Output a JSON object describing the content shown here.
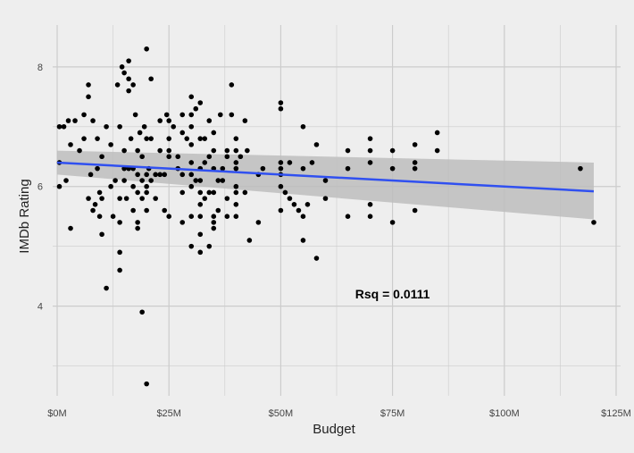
{
  "chart_data": {
    "type": "scatter",
    "xlabel": "Budget",
    "ylabel": "IMDb Rating",
    "xlim": [
      -1,
      126
    ],
    "ylim": [
      2.5,
      8.7
    ],
    "x_ticks": [
      0,
      25,
      50,
      75,
      100,
      125
    ],
    "x_tick_labels": [
      "$0M",
      "$25M",
      "$50M",
      "$75M",
      "$100M",
      "$125M"
    ],
    "y_ticks": [
      4,
      6,
      8
    ],
    "y_tick_labels": [
      "4",
      "6",
      "8"
    ],
    "grid": true,
    "annotation": {
      "text": "Rsq = 0.0111",
      "x": 75,
      "y": 4.2
    },
    "colors": {
      "points": "#000000",
      "trend": "#3050f0",
      "band": "#bdbdbd",
      "grid": "#cccccc",
      "background": "#eeeeee"
    },
    "trend": {
      "x": [
        0,
        120
      ],
      "y": [
        6.4,
        5.92
      ],
      "band_upper": [
        6.6,
        6.4
      ],
      "band_lower": [
        6.2,
        5.45
      ]
    },
    "series": [
      {
        "points": [
          [
            0.5,
            7.0
          ],
          [
            1.5,
            7.0
          ],
          [
            0.5,
            6.4
          ],
          [
            0.5,
            6.0
          ],
          [
            2,
            6.1
          ],
          [
            2.5,
            7.1
          ],
          [
            3,
            6.7
          ],
          [
            3,
            5.3
          ],
          [
            4,
            7.1
          ],
          [
            5,
            6.6
          ],
          [
            6,
            7.2
          ],
          [
            6,
            6.8
          ],
          [
            7,
            7.7
          ],
          [
            7,
            7.5
          ],
          [
            7,
            5.8
          ],
          [
            7.5,
            6.2
          ],
          [
            8,
            7.1
          ],
          [
            8,
            5.6
          ],
          [
            8.5,
            5.7
          ],
          [
            9,
            6.8
          ],
          [
            9,
            6.3
          ],
          [
            9.5,
            5.9
          ],
          [
            9.5,
            5.5
          ],
          [
            10,
            6.5
          ],
          [
            10,
            5.8
          ],
          [
            10,
            5.2
          ],
          [
            11,
            7.0
          ],
          [
            11,
            4.3
          ],
          [
            12,
            6.7
          ],
          [
            12,
            6.0
          ],
          [
            12.5,
            5.5
          ],
          [
            13,
            6.1
          ],
          [
            13.5,
            7.7
          ],
          [
            14,
            7.0
          ],
          [
            14,
            5.8
          ],
          [
            14,
            5.4
          ],
          [
            14,
            4.9
          ],
          [
            14,
            4.6
          ],
          [
            14.5,
            8.0
          ],
          [
            15,
            7.9
          ],
          [
            15,
            6.6
          ],
          [
            15,
            6.3
          ],
          [
            15,
            6.1
          ],
          [
            15.5,
            5.8
          ],
          [
            16,
            8.1
          ],
          [
            16,
            7.6
          ],
          [
            16,
            7.8
          ],
          [
            16,
            6.3
          ],
          [
            16.5,
            6.8
          ],
          [
            17,
            7.7
          ],
          [
            17,
            6.3
          ],
          [
            17,
            6.0
          ],
          [
            17,
            5.6
          ],
          [
            17.5,
            7.2
          ],
          [
            18,
            6.6
          ],
          [
            18,
            6.2
          ],
          [
            18,
            5.9
          ],
          [
            18,
            5.4
          ],
          [
            18,
            5.3
          ],
          [
            18.5,
            6.9
          ],
          [
            19,
            6.5
          ],
          [
            19,
            6.1
          ],
          [
            19,
            5.8
          ],
          [
            19,
            3.9
          ],
          [
            19.5,
            7.0
          ],
          [
            20,
            8.3
          ],
          [
            20,
            6.8
          ],
          [
            20,
            6.2
          ],
          [
            20,
            6.0
          ],
          [
            20,
            5.9
          ],
          [
            20,
            5.6
          ],
          [
            20,
            2.7
          ],
          [
            20.5,
            6.3
          ],
          [
            21,
            7.8
          ],
          [
            21,
            6.8
          ],
          [
            21,
            6.1
          ],
          [
            22,
            6.2
          ],
          [
            22,
            5.8
          ],
          [
            23,
            6.2
          ],
          [
            23,
            7.1
          ],
          [
            23,
            6.6
          ],
          [
            24,
            6.2
          ],
          [
            24,
            5.6
          ],
          [
            24.5,
            7.2
          ],
          [
            25,
            7.1
          ],
          [
            25,
            6.8
          ],
          [
            25,
            6.6
          ],
          [
            25,
            6.5
          ],
          [
            25,
            5.5
          ],
          [
            26,
            7.0
          ],
          [
            27,
            6.5
          ],
          [
            27,
            6.3
          ],
          [
            28,
            7.2
          ],
          [
            28,
            6.9
          ],
          [
            28,
            6.2
          ],
          [
            28,
            5.9
          ],
          [
            28,
            5.4
          ],
          [
            29,
            6.8
          ],
          [
            30,
            7.5
          ],
          [
            30,
            7.2
          ],
          [
            30,
            7.0
          ],
          [
            30,
            6.7
          ],
          [
            30,
            6.4
          ],
          [
            30,
            6.2
          ],
          [
            30,
            6.0
          ],
          [
            30,
            5.5
          ],
          [
            30,
            5.0
          ],
          [
            31,
            7.3
          ],
          [
            31,
            6.1
          ],
          [
            32,
            7.4
          ],
          [
            32,
            6.8
          ],
          [
            32,
            6.3
          ],
          [
            32,
            6.1
          ],
          [
            32,
            5.9
          ],
          [
            32,
            5.7
          ],
          [
            32,
            5.5
          ],
          [
            32,
            5.2
          ],
          [
            32,
            4.9
          ],
          [
            33,
            6.4
          ],
          [
            33,
            6.8
          ],
          [
            33,
            5.8
          ],
          [
            34,
            7.1
          ],
          [
            34,
            6.5
          ],
          [
            34,
            5.9
          ],
          [
            34,
            5.0
          ],
          [
            35,
            6.9
          ],
          [
            35,
            6.6
          ],
          [
            35,
            6.3
          ],
          [
            35,
            5.9
          ],
          [
            35,
            5.5
          ],
          [
            35,
            5.4
          ],
          [
            35,
            5.3
          ],
          [
            36,
            6.1
          ],
          [
            36,
            5.6
          ],
          [
            36.5,
            7.2
          ],
          [
            37,
            6.3
          ],
          [
            37,
            6.1
          ],
          [
            38,
            6.6
          ],
          [
            38,
            6.5
          ],
          [
            38,
            5.8
          ],
          [
            38,
            5.5
          ],
          [
            39,
            7.7
          ],
          [
            39,
            7.2
          ],
          [
            40,
            6.8
          ],
          [
            40,
            6.6
          ],
          [
            40,
            6.4
          ],
          [
            40,
            6.3
          ],
          [
            40,
            6.0
          ],
          [
            40,
            5.9
          ],
          [
            40,
            5.7
          ],
          [
            40,
            5.5
          ],
          [
            41,
            6.5
          ],
          [
            42,
            7.1
          ],
          [
            42,
            5.9
          ],
          [
            42.5,
            6.6
          ],
          [
            43,
            5.1
          ],
          [
            45,
            6.2
          ],
          [
            45,
            5.4
          ],
          [
            46,
            6.3
          ],
          [
            50,
            7.4
          ],
          [
            50,
            7.3
          ],
          [
            50,
            6.4
          ],
          [
            50,
            6.3
          ],
          [
            50,
            6.2
          ],
          [
            50,
            6.0
          ],
          [
            50,
            5.6
          ],
          [
            51,
            5.9
          ],
          [
            52,
            6.4
          ],
          [
            52,
            5.8
          ],
          [
            53,
            5.7
          ],
          [
            54,
            5.6
          ],
          [
            55,
            7.0
          ],
          [
            55,
            6.3
          ],
          [
            55,
            5.5
          ],
          [
            55,
            5.1
          ],
          [
            56,
            5.7
          ],
          [
            57,
            6.4
          ],
          [
            58,
            6.7
          ],
          [
            58,
            4.8
          ],
          [
            60,
            6.1
          ],
          [
            60,
            5.8
          ],
          [
            65,
            6.6
          ],
          [
            65,
            6.3
          ],
          [
            65,
            5.5
          ],
          [
            70,
            6.8
          ],
          [
            70,
            6.6
          ],
          [
            70,
            6.4
          ],
          [
            70,
            5.7
          ],
          [
            70,
            5.5
          ],
          [
            75,
            6.6
          ],
          [
            75,
            6.3
          ],
          [
            75,
            5.4
          ],
          [
            80,
            6.7
          ],
          [
            80,
            6.4
          ],
          [
            80,
            6.3
          ],
          [
            80,
            5.6
          ],
          [
            85,
            6.9
          ],
          [
            85,
            6.6
          ],
          [
            117,
            6.3
          ],
          [
            120,
            5.4
          ]
        ]
      }
    ]
  }
}
